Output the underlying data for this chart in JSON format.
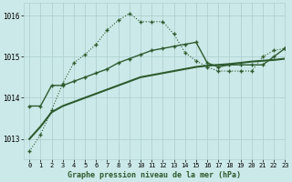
{
  "background_color": "#cce9e9",
  "grid_color": "#b0d0d0",
  "line_color": "#2d5a2d",
  "title": "Graphe pression niveau de la mer (hPa)",
  "xlim": [
    -0.5,
    23
  ],
  "ylim": [
    1012.5,
    1016.3
  ],
  "yticks": [
    1013,
    1014,
    1015,
    1016
  ],
  "xticks": [
    0,
    1,
    2,
    3,
    4,
    5,
    6,
    7,
    8,
    9,
    10,
    11,
    12,
    13,
    14,
    15,
    16,
    17,
    18,
    19,
    20,
    21,
    22,
    23
  ],
  "series_dotted_x": [
    0,
    1,
    2,
    3,
    4,
    5,
    6,
    7,
    8,
    9,
    10,
    11,
    12,
    13,
    14,
    15,
    16,
    17,
    18,
    19,
    20,
    21,
    22,
    23
  ],
  "series_dotted_y": [
    1012.7,
    1013.1,
    1013.7,
    1014.35,
    1014.85,
    1015.05,
    1015.3,
    1015.65,
    1015.88,
    1016.05,
    1015.85,
    1015.85,
    1015.85,
    1015.55,
    1015.1,
    1014.9,
    1014.75,
    1014.65,
    1014.65,
    1014.65,
    1014.65,
    1015.0,
    1015.15,
    1015.2
  ],
  "series_solid_upper_x": [
    0,
    1,
    2,
    3,
    4,
    5,
    6,
    7,
    8,
    9,
    10,
    11,
    12,
    13,
    14,
    15,
    16,
    17,
    18,
    19,
    20,
    21,
    22,
    23
  ],
  "series_solid_upper_y": [
    1013.8,
    1013.8,
    1014.3,
    1014.3,
    1014.4,
    1014.5,
    1014.6,
    1014.7,
    1014.85,
    1014.95,
    1015.05,
    1015.15,
    1015.2,
    1015.25,
    1015.3,
    1015.35,
    1014.85,
    1014.75,
    1014.8,
    1014.8,
    1014.8,
    1014.8,
    1015.0,
    1015.2
  ],
  "series_solid_lower_x": [
    0,
    1,
    2,
    3,
    4,
    5,
    6,
    7,
    8,
    9,
    10,
    11,
    12,
    13,
    14,
    15,
    16,
    17,
    18,
    19,
    20,
    21,
    22,
    23
  ],
  "series_solid_lower_y": [
    1013.0,
    1013.3,
    1013.65,
    1013.8,
    1013.9,
    1014.0,
    1014.1,
    1014.2,
    1014.3,
    1014.4,
    1014.5,
    1014.55,
    1014.6,
    1014.65,
    1014.7,
    1014.75,
    1014.78,
    1014.8,
    1014.82,
    1014.85,
    1014.88,
    1014.9,
    1014.92,
    1014.95
  ]
}
